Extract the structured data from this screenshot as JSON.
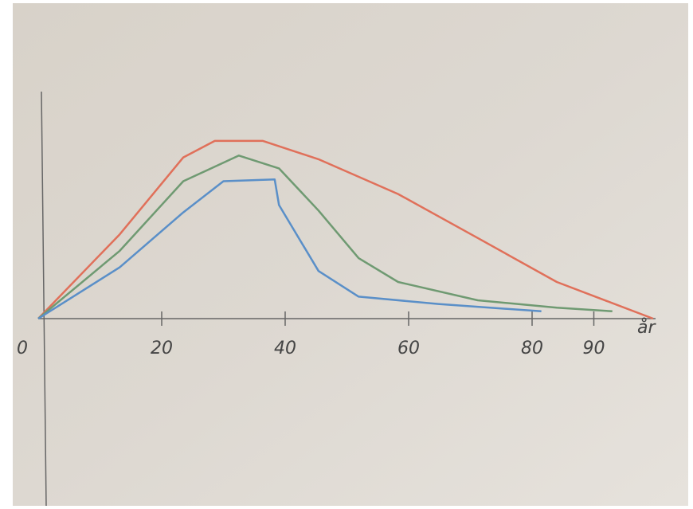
{
  "chart_data": {
    "type": "line",
    "xlabel": "år",
    "xlim": [
      0,
      100
    ],
    "xticks": [
      0,
      20,
      40,
      60,
      80,
      90
    ],
    "ylim": [
      0,
      100
    ],
    "series": [
      {
        "color": "#e0705a",
        "x": [
          0,
          13.2,
          23.5,
          28.6,
          36.4,
          45.4,
          58.3,
          71.2,
          84,
          99.6
        ],
        "values": [
          0,
          46,
          88,
          97,
          97,
          87,
          68,
          44,
          20,
          0
        ]
      },
      {
        "color": "#6f9a72",
        "x": [
          0,
          13.2,
          23.5,
          32.5,
          39,
          45.4,
          51.9,
          58.3,
          71.2,
          84,
          93
        ],
        "values": [
          0,
          37,
          75,
          89,
          82,
          59,
          33,
          20,
          10,
          6,
          4
        ]
      },
      {
        "color": "#5a8fc8",
        "x": [
          0,
          13.2,
          23.5,
          30,
          38.3,
          39,
          45.4,
          51.9,
          64.8,
          81.5
        ],
        "values": [
          0,
          28,
          58,
          75,
          76,
          62,
          26,
          12,
          8,
          4
        ]
      }
    ]
  }
}
